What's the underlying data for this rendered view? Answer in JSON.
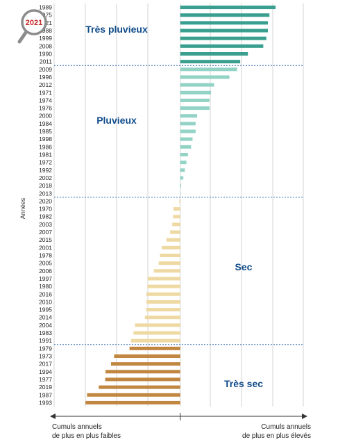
{
  "chart_data": {
    "type": "bar",
    "orientation": "horizontal",
    "title": "",
    "ylabel": "Années",
    "xlabel_left": [
      "Cumuls annuels",
      "de plus en plus faibles"
    ],
    "xlabel_right": [
      "Cumuls annuels",
      "de plus en plus élevés"
    ],
    "grid": true,
    "highlight_badge": "2021",
    "categories": [
      "1989",
      "1975",
      "2021",
      "1988",
      "1999",
      "2008",
      "1990",
      "2011",
      "2009",
      "1996",
      "2012",
      "1971",
      "1974",
      "1976",
      "2000",
      "1984",
      "1985",
      "1998",
      "1986",
      "1981",
      "1972",
      "1992",
      "2002",
      "2018",
      "2013",
      "2020",
      "1970",
      "1982",
      "2003",
      "2007",
      "2015",
      "2001",
      "1978",
      "2005",
      "2006",
      "1997",
      "1980",
      "2016",
      "2010",
      "1995",
      "2014",
      "2004",
      "1983",
      "1991",
      "1979",
      "1973",
      "2017",
      "1994",
      "1977",
      "2019",
      "1987",
      "1993"
    ],
    "values": [
      31,
      29,
      28.5,
      28.5,
      28,
      27,
      22,
      19.5,
      18.5,
      16,
      11,
      10,
      9.5,
      9.5,
      5.5,
      5,
      5,
      4,
      3.5,
      2.5,
      2,
      1.5,
      1,
      0.3,
      0.1,
      -0.3,
      -2.2,
      -2.3,
      -2.6,
      -3.3,
      -4.5,
      -6,
      -6.6,
      -7,
      -8.6,
      -10.6,
      -10.7,
      -11,
      -11,
      -11.1,
      -11.5,
      -14.7,
      -15.2,
      -16,
      -16.5,
      -21.5,
      -22.5,
      -24.3,
      -24.4,
      -26.5,
      -30.3,
      -30.8
    ],
    "xlim": [
      -41,
      40
    ],
    "group_labels": [
      "Très pluvieux",
      "Pluvieux",
      "Sec",
      "Très sec"
    ],
    "group_colors": [
      "#3a9f8e",
      "#92d3c6",
      "#efd9a2",
      "#c18640"
    ],
    "group_ranges": [
      [
        0,
        7
      ],
      [
        8,
        24
      ],
      [
        25,
        43
      ],
      [
        44,
        51
      ]
    ],
    "text_color": "#104c8a"
  }
}
